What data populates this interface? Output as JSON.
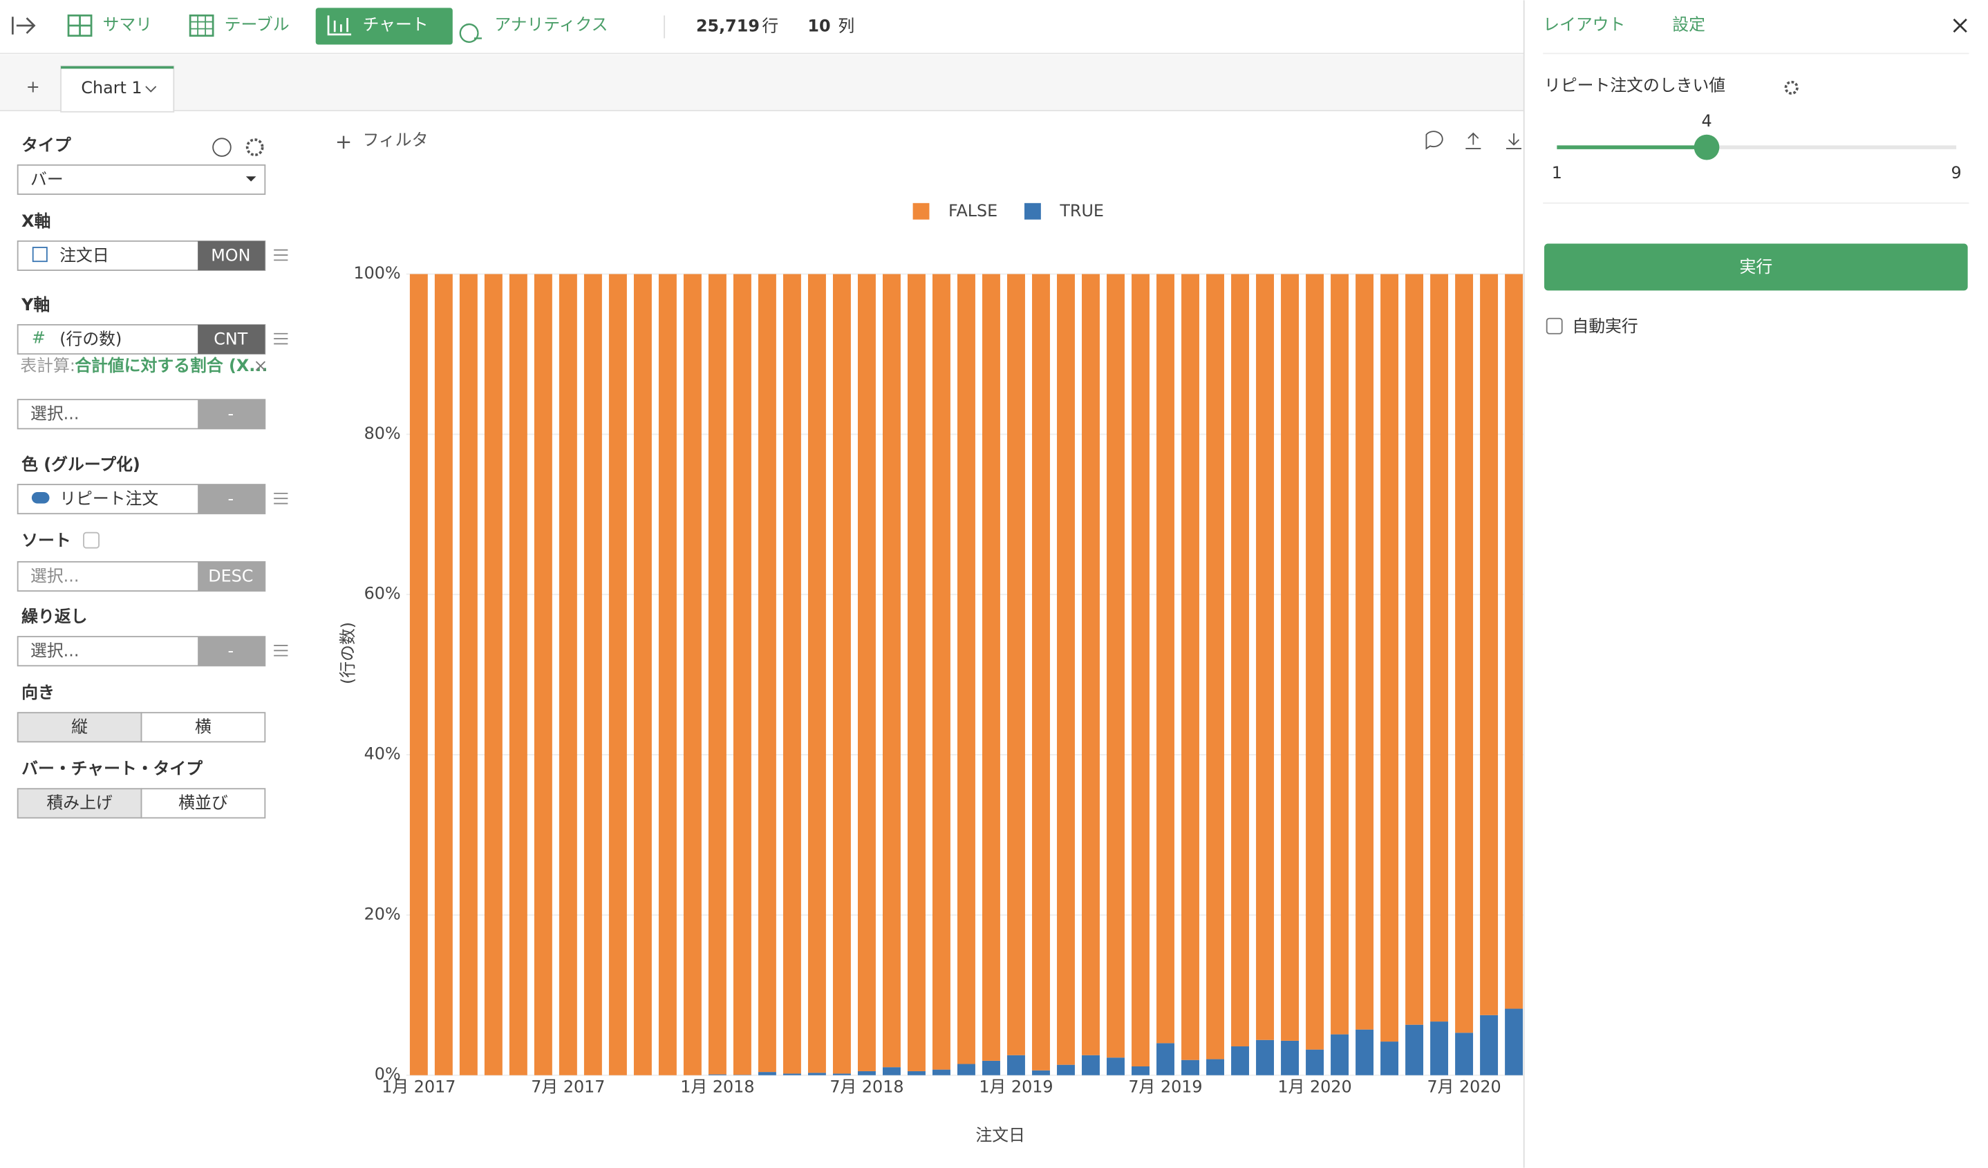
{
  "toolbar": {
    "tabs": [
      "サマリ",
      "テーブル",
      "チャート",
      "アナリティクス"
    ],
    "rows": "25,719",
    "rows_unit": "行",
    "cols": "10",
    "cols_unit": "列"
  },
  "chart_tab": {
    "add": "+",
    "name": "Chart 1"
  },
  "filter": "フィルタ",
  "left_panel": {
    "type_label": "タイプ",
    "type_value": "バー",
    "x_label": "X軸",
    "x_field": "注文日",
    "x_agg": "MON",
    "y_label": "Y軸",
    "y_field": "(行の数)",
    "y_agg": "CNT",
    "calc_prefix": "表計算:",
    "calc_value": "合計値に対する割合 (X...",
    "select1": "選択...",
    "select1_agg": "-",
    "color_label": "色 (グループ化)",
    "color_field": "リピート注文",
    "color_agg": "-",
    "sort_label": "ソート",
    "sort_field": "選択...",
    "sort_agg": "DESC",
    "repeat_label": "繰り返し",
    "repeat_field": "選択...",
    "repeat_agg": "-",
    "orient_label": "向き",
    "orient_options": [
      "縦",
      "横"
    ],
    "bartype_label": "バー・チャート・タイプ",
    "bartype_options": [
      "積み上げ",
      "横並び"
    ]
  },
  "right_panel": {
    "tabs": [
      "レイアウト",
      "設定"
    ],
    "param_label": "リピート注文のしきい値",
    "slider": {
      "value": 4,
      "min": 1,
      "max": 9
    },
    "run": "実行",
    "auto_run": "自動実行"
  },
  "chart_data": {
    "type": "bar",
    "stacked": true,
    "x_label": "注文日",
    "y_label": "(行の数)",
    "legend": "top",
    "grid": true,
    "categories": [
      "1月 2017",
      null,
      null,
      null,
      null,
      null,
      "7月 2017",
      null,
      null,
      null,
      null,
      null,
      "1月 2018",
      null,
      null,
      null,
      null,
      null,
      "7月 2018",
      null,
      null,
      null,
      null,
      null,
      "1月 2019",
      null,
      null,
      null,
      null,
      null,
      "7月 2019",
      null,
      null,
      null,
      null,
      null,
      "1月 2020",
      null,
      null,
      null,
      null,
      null,
      "7月 2020",
      null,
      null
    ],
    "series": [
      {
        "name": "TRUE",
        "color": "#3a76b3",
        "values": [
          0,
          0,
          0,
          0,
          0,
          0,
          0,
          0,
          0,
          0,
          0,
          0,
          0.1,
          0.05,
          0.4,
          0.2,
          0.3,
          0.2,
          0.5,
          1.0,
          0.5,
          0.7,
          1.4,
          1.8,
          2.5,
          0.6,
          1.3,
          2.5,
          2.2,
          1.1,
          4.0,
          1.9,
          2.0,
          3.6,
          4.4,
          4.3,
          3.2,
          5.1,
          5.7,
          4.2,
          6.3,
          6.7,
          5.3,
          7.5,
          8.3
        ]
      },
      {
        "name": "FALSE",
        "color": "#f0893a",
        "values": [
          100,
          100,
          100,
          100,
          100,
          100,
          100,
          100,
          100,
          100,
          100,
          100,
          99.9,
          99.95,
          99.6,
          99.8,
          99.7,
          99.8,
          99.5,
          99.0,
          99.5,
          99.3,
          98.6,
          98.2,
          97.5,
          99.4,
          98.7,
          97.5,
          97.8,
          98.9,
          96.0,
          98.1,
          98.0,
          96.4,
          95.6,
          95.7,
          96.8,
          94.9,
          94.3,
          95.8,
          93.7,
          93.3,
          94.7,
          92.5,
          91.7
        ]
      }
    ],
    "ylim": [
      0,
      100
    ],
    "yticks": [
      {
        "value": 0,
        "label": "0%"
      },
      {
        "value": 20,
        "label": "20%"
      },
      {
        "value": 40,
        "label": "40%"
      },
      {
        "value": 60,
        "label": "60%"
      },
      {
        "value": 80,
        "label": "80%"
      },
      {
        "value": 100,
        "label": "100%"
      }
    ]
  }
}
